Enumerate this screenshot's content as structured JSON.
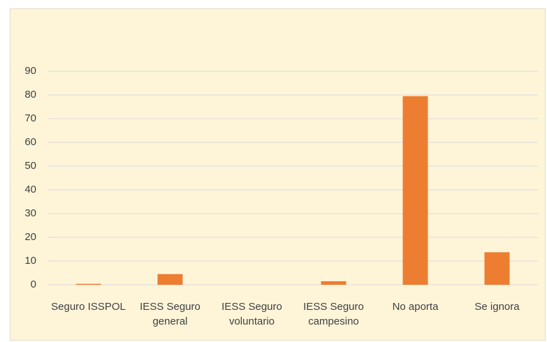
{
  "chart_data": {
    "type": "bar",
    "categories": [
      "Seguro ISSPOL",
      "IESS Seguro general",
      "IESS Seguro voluntario",
      "IESS Seguro campesino",
      "No aporta",
      "Se ignora"
    ],
    "values": [
      0.4,
      4.5,
      0,
      1.5,
      79.5,
      13.7
    ],
    "color": "#ed7d31",
    "ylim": [
      0,
      90
    ],
    "yticks": [
      0,
      10,
      20,
      30,
      40,
      50,
      60,
      70,
      80,
      90
    ],
    "grid": true
  }
}
